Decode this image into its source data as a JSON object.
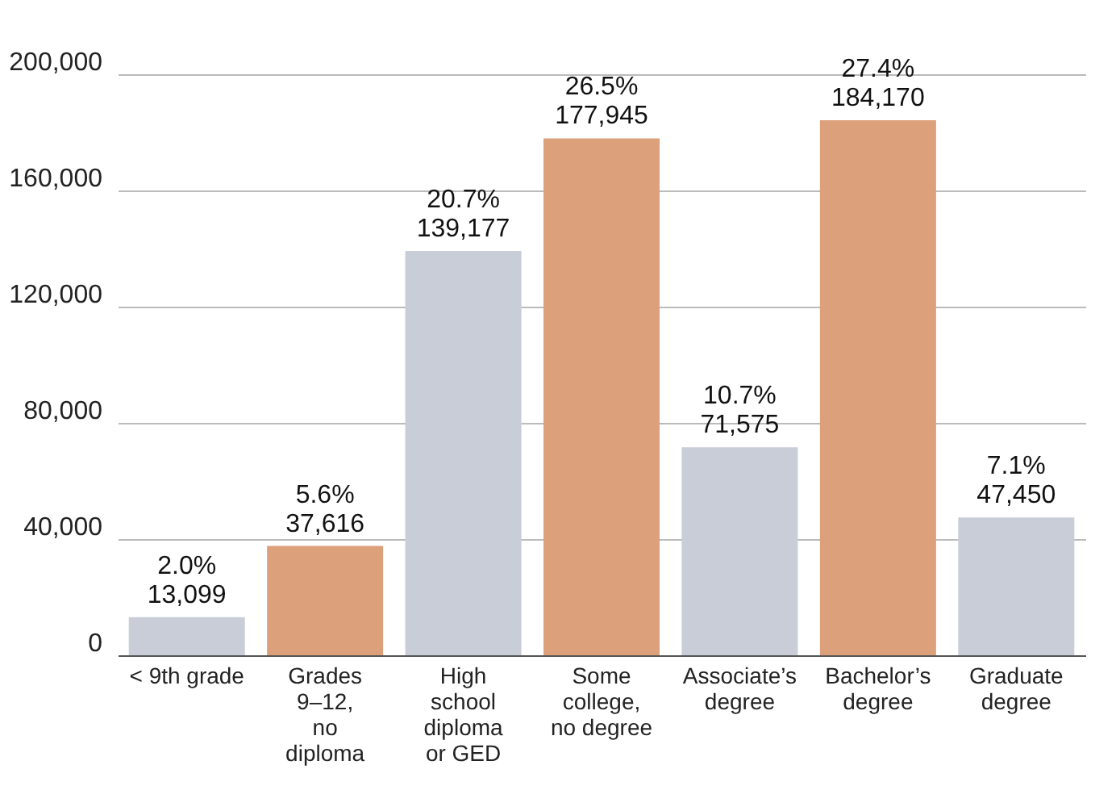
{
  "chart_data": {
    "type": "bar",
    "categories": [
      "< 9th grade",
      "Grades\n9–12,\nno\ndiploma",
      "High\nschool\ndiploma\nor GED",
      "Some\ncollege,\nno degree",
      "Associate’s\ndegree",
      "Bachelor’s\ndegree",
      "Graduate\ndegree"
    ],
    "values": [
      13099,
      37616,
      139177,
      177945,
      71575,
      184170,
      47450
    ],
    "colors": [
      "#c9cdd8",
      "#dca07a",
      "#c9cdd8",
      "#dca07a",
      "#c9cdd8",
      "#dca07a",
      "#c9cdd8"
    ],
    "value_labels": [
      "2.0%\n13,099",
      "5.6%\n37,616",
      "20.7%\n139,177",
      "26.5%\n177,945",
      "10.7%\n71,575",
      "27.4%\n184,170",
      "7.1%\n47,450"
    ],
    "ylim": [
      0,
      200000
    ],
    "yticks": [
      0,
      {
        "value": 40000,
        "label": "40,000"
      },
      {
        "value": 80000,
        "label": "80,000"
      },
      {
        "value": 120000,
        "label": "120,000"
      },
      {
        "value": 160000,
        "label": "160,000"
      },
      {
        "value": 200000,
        "label": "200,000"
      }
    ],
    "grid": "y"
  }
}
